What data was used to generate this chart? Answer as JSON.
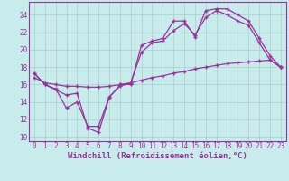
{
  "xlabel": "Windchill (Refroidissement éolien,°C)",
  "ylabel": "",
  "bg_color": "#c8ecec",
  "line_color": "#993399",
  "grid_color": "#aacccc",
  "axis_color": "#993399",
  "xlim": [
    -0.5,
    23.5
  ],
  "ylim": [
    9.5,
    25.5
  ],
  "xticks": [
    0,
    1,
    2,
    3,
    4,
    5,
    6,
    7,
    8,
    9,
    10,
    11,
    12,
    13,
    14,
    15,
    16,
    17,
    18,
    19,
    20,
    21,
    22,
    23
  ],
  "yticks": [
    10,
    12,
    14,
    16,
    18,
    20,
    22,
    24
  ],
  "line1_x": [
    0,
    1,
    2,
    3,
    4,
    5,
    6,
    7,
    8,
    9,
    10,
    11,
    12,
    13,
    14,
    15,
    16,
    17,
    18,
    19,
    20,
    21,
    22,
    23
  ],
  "line1_y": [
    17.3,
    16.0,
    15.4,
    14.8,
    15.0,
    11.0,
    10.5,
    14.5,
    16.0,
    16.0,
    20.5,
    21.0,
    21.3,
    23.3,
    23.3,
    21.5,
    24.5,
    24.7,
    24.7,
    24.0,
    23.3,
    21.3,
    19.3,
    18.0
  ],
  "line2_x": [
    0,
    1,
    2,
    3,
    4,
    5,
    6,
    7,
    8,
    9,
    10,
    11,
    12,
    13,
    14,
    15,
    16,
    17,
    18,
    19,
    20,
    21,
    22,
    23
  ],
  "line2_y": [
    17.3,
    16.0,
    15.5,
    13.3,
    14.0,
    11.2,
    11.2,
    14.6,
    15.8,
    16.2,
    19.7,
    20.8,
    21.0,
    22.2,
    23.0,
    21.7,
    23.7,
    24.5,
    24.0,
    23.3,
    22.8,
    20.8,
    18.8,
    18.0
  ],
  "line3_x": [
    0,
    1,
    2,
    3,
    4,
    5,
    6,
    7,
    8,
    9,
    10,
    11,
    12,
    13,
    14,
    15,
    16,
    17,
    18,
    19,
    20,
    21,
    22,
    23
  ],
  "line3_y": [
    16.8,
    16.2,
    16.0,
    15.8,
    15.8,
    15.7,
    15.7,
    15.8,
    16.0,
    16.2,
    16.5,
    16.8,
    17.0,
    17.3,
    17.5,
    17.8,
    18.0,
    18.2,
    18.4,
    18.5,
    18.6,
    18.7,
    18.8,
    18.0
  ],
  "tick_fontsize": 5.5,
  "xlabel_fontsize": 6.5
}
